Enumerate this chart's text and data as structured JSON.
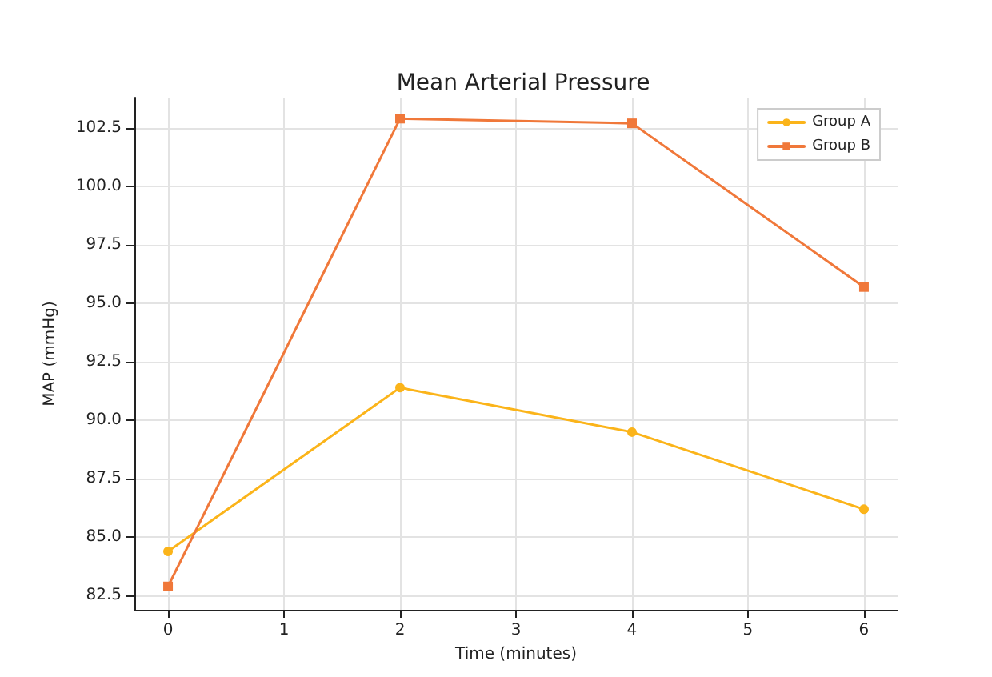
{
  "chart_data": {
    "type": "line",
    "title": "Mean Arterial Pressure",
    "xlabel": "Time (minutes)",
    "ylabel": "MAP (mmHg)",
    "x": [
      0,
      2,
      4,
      6
    ],
    "series": [
      {
        "name": "Group A",
        "color": "#fbb41a",
        "marker": "circle",
        "values": [
          84.4,
          91.4,
          89.5,
          86.2
        ]
      },
      {
        "name": "Group B",
        "color": "#f0783a",
        "marker": "square",
        "values": [
          82.9,
          102.9,
          102.7,
          95.7
        ]
      }
    ],
    "xlim": [
      -0.29,
      6.29
    ],
    "xticks": [
      0,
      1,
      2,
      3,
      4,
      5,
      6
    ],
    "ylim": [
      81.9,
      103.8
    ],
    "yticks": [
      82.5,
      {
        "value": 85,
        "label": "85.0"
      },
      87.5,
      {
        "value": 90,
        "label": "90.0"
      },
      92.5,
      {
        "value": 95,
        "label": "95.0"
      },
      97.5,
      {
        "value": 100,
        "label": "100.0"
      },
      102.5
    ],
    "grid": true,
    "legend": "top right",
    "line_style": "solid"
  }
}
